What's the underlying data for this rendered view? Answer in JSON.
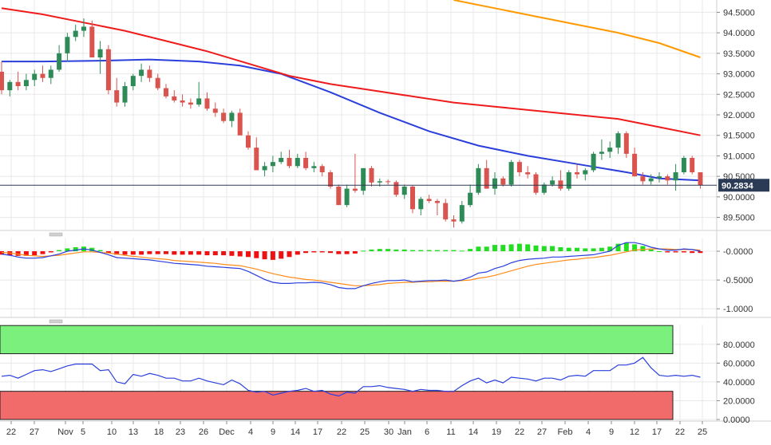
{
  "colors": {
    "up": "#2e8b57",
    "down": "#d9534f",
    "ma_fast": "#2a3fdc",
    "ma_mid": "#ee1c1c",
    "ma_slow": "#ff9900",
    "macd_line": "#2a3fdc",
    "macd_signal": "#ff8c1a",
    "hist_pos": "#22dd22",
    "hist_neg": "#ee1111",
    "rsi_line": "#2a3fdc",
    "overbought_fill": "#7cf07c",
    "oversold_fill": "#f26b6b",
    "last_price_bg": "#2b3a55",
    "grid": "#e8e8e8"
  },
  "chart_data": [
    {
      "type": "candlestick",
      "panel": "price",
      "last_price": "90.2834",
      "ylim": [
        89.2,
        94.8
      ],
      "y_ticks": [
        "89.5000",
        "90.0000",
        "90.5000",
        "91.0000",
        "91.5000",
        "92.0000",
        "92.5000",
        "93.0000",
        "93.5000",
        "94.0000",
        "94.5000"
      ],
      "x_ticks": [
        "22",
        "27",
        "Nov",
        "5",
        "10",
        "13",
        "18",
        "23",
        "26",
        "Dec",
        "4",
        "9",
        "14",
        "17",
        "22",
        "25",
        "30",
        "Jan",
        "6",
        "11",
        "14",
        "19",
        "22",
        "27",
        "Feb",
        "4",
        "9",
        "12",
        "17",
        "22",
        "25"
      ],
      "candles": [
        [
          93.05,
          93.3,
          92.5,
          92.6
        ],
        [
          92.6,
          92.85,
          92.45,
          92.8
        ],
        [
          92.8,
          93.05,
          92.6,
          92.7
        ],
        [
          92.7,
          93.0,
          92.6,
          92.85
        ],
        [
          92.85,
          93.1,
          92.7,
          93.0
        ],
        [
          93.0,
          93.2,
          92.8,
          92.9
        ],
        [
          92.9,
          93.2,
          92.75,
          93.1
        ],
        [
          93.1,
          93.7,
          93.05,
          93.5
        ],
        [
          93.5,
          94.0,
          93.3,
          93.9
        ],
        [
          93.9,
          94.2,
          93.8,
          94.05
        ],
        [
          94.05,
          94.35,
          93.9,
          94.15
        ],
        [
          94.15,
          94.3,
          93.4,
          93.4
        ],
        [
          93.4,
          93.8,
          93.0,
          93.6
        ],
        [
          93.6,
          93.7,
          92.5,
          92.6
        ],
        [
          92.6,
          92.9,
          92.2,
          92.3
        ],
        [
          92.3,
          92.8,
          92.2,
          92.7
        ],
        [
          92.7,
          93.0,
          92.6,
          92.95
        ],
        [
          92.95,
          93.25,
          92.8,
          93.1
        ],
        [
          93.1,
          93.2,
          92.8,
          92.9
        ],
        [
          92.9,
          93.0,
          92.6,
          92.65
        ],
        [
          92.65,
          92.75,
          92.4,
          92.45
        ],
        [
          92.45,
          92.6,
          92.3,
          92.35
        ],
        [
          92.35,
          92.5,
          92.2,
          92.3
        ],
        [
          92.3,
          92.4,
          92.15,
          92.25
        ],
        [
          92.25,
          92.8,
          92.2,
          92.4
        ],
        [
          92.4,
          92.55,
          92.1,
          92.15
        ],
        [
          92.15,
          92.3,
          91.95,
          92.05
        ],
        [
          92.05,
          92.15,
          91.8,
          91.85
        ],
        [
          91.85,
          92.1,
          91.7,
          92.05
        ],
        [
          92.05,
          92.15,
          91.5,
          91.5
        ],
        [
          91.5,
          91.6,
          91.15,
          91.2
        ],
        [
          91.2,
          91.45,
          90.65,
          90.65
        ],
        [
          90.65,
          90.85,
          90.5,
          90.75
        ],
        [
          90.75,
          91.0,
          90.6,
          90.85
        ],
        [
          90.85,
          91.1,
          90.8,
          90.95
        ],
        [
          90.95,
          91.15,
          90.7,
          90.75
        ],
        [
          90.75,
          91.05,
          90.7,
          90.95
        ],
        [
          90.95,
          91.1,
          90.65,
          90.7
        ],
        [
          90.7,
          90.85,
          90.6,
          90.75
        ],
        [
          90.75,
          90.8,
          90.5,
          90.6
        ],
        [
          90.6,
          90.65,
          90.2,
          90.25
        ],
        [
          90.25,
          90.3,
          89.8,
          89.8
        ],
        [
          89.8,
          90.3,
          89.75,
          90.2
        ],
        [
          90.2,
          91.05,
          90.1,
          90.15
        ],
        [
          90.15,
          90.7,
          90.05,
          90.7
        ],
        [
          90.7,
          90.75,
          90.25,
          90.35
        ],
        [
          90.35,
          90.45,
          90.25,
          90.38
        ],
        [
          90.38,
          90.42,
          90.3,
          90.36
        ],
        [
          90.36,
          90.4,
          90.0,
          90.05
        ],
        [
          90.05,
          90.3,
          89.95,
          90.25
        ],
        [
          90.25,
          90.28,
          89.6,
          89.7
        ],
        [
          89.7,
          90.0,
          89.55,
          89.95
        ],
        [
          89.95,
          90.05,
          89.85,
          89.9
        ],
        [
          89.9,
          89.95,
          89.55,
          89.85
        ],
        [
          89.85,
          89.95,
          89.4,
          89.45
        ],
        [
          89.45,
          89.55,
          89.25,
          89.4
        ],
        [
          89.4,
          89.9,
          89.35,
          89.8
        ],
        [
          89.8,
          90.3,
          89.75,
          90.1
        ],
        [
          90.1,
          90.8,
          90.05,
          90.7
        ],
        [
          90.7,
          90.9,
          90.2,
          90.2
        ],
        [
          90.2,
          90.6,
          90.05,
          90.45
        ],
        [
          90.45,
          90.5,
          90.25,
          90.3
        ],
        [
          90.3,
          90.9,
          90.25,
          90.85
        ],
        [
          90.85,
          90.9,
          90.5,
          90.6
        ],
        [
          90.6,
          90.75,
          90.45,
          90.55
        ],
        [
          90.55,
          90.6,
          90.05,
          90.1
        ],
        [
          90.1,
          90.35,
          90.05,
          90.3
        ],
        [
          90.3,
          90.5,
          90.25,
          90.4
        ],
        [
          90.4,
          90.65,
          90.15,
          90.2
        ],
        [
          90.2,
          90.65,
          90.15,
          90.6
        ],
        [
          90.6,
          90.8,
          90.45,
          90.55
        ],
        [
          90.55,
          90.7,
          90.4,
          90.65
        ],
        [
          90.65,
          91.1,
          90.6,
          91.05
        ],
        [
          91.05,
          91.4,
          90.9,
          91.1
        ],
        [
          91.1,
          91.35,
          90.95,
          91.2
        ],
        [
          91.2,
          91.6,
          91.05,
          91.55
        ],
        [
          91.55,
          91.6,
          90.95,
          91.05
        ],
        [
          91.05,
          91.2,
          90.5,
          90.5
        ],
        [
          90.5,
          90.6,
          90.3,
          90.38
        ],
        [
          90.38,
          90.55,
          90.3,
          90.45
        ],
        [
          90.45,
          90.6,
          90.35,
          90.5
        ],
        [
          90.5,
          90.55,
          90.3,
          90.4
        ],
        [
          90.4,
          90.8,
          90.15,
          90.6
        ],
        [
          90.6,
          91.0,
          90.55,
          90.95
        ],
        [
          90.95,
          91.0,
          90.55,
          90.6
        ],
        [
          90.6,
          90.6,
          90.2,
          90.2834
        ]
      ],
      "moving_averages": [
        {
          "period_label": "fast",
          "points": [
            [
              0,
              93.3
            ],
            [
              5,
              93.3
            ],
            [
              12,
              93.32
            ],
            [
              18,
              93.35
            ],
            [
              24,
              93.3
            ],
            [
              29,
              93.2
            ],
            [
              34,
              93.0
            ],
            [
              40,
              92.55
            ],
            [
              46,
              92.05
            ],
            [
              52,
              91.6
            ],
            [
              58,
              91.25
            ],
            [
              64,
              91.0
            ],
            [
              70,
              90.8
            ],
            [
              76,
              90.6
            ],
            [
              80,
              90.45
            ],
            [
              85,
              90.4
            ]
          ]
        },
        {
          "period_label": "mid",
          "points": [
            [
              0,
              94.6
            ],
            [
              5,
              94.45
            ],
            [
              10,
              94.25
            ],
            [
              15,
              94.05
            ],
            [
              20,
              93.8
            ],
            [
              25,
              93.55
            ],
            [
              30,
              93.25
            ],
            [
              35,
              92.95
            ],
            [
              40,
              92.75
            ],
            [
              45,
              92.6
            ],
            [
              50,
              92.45
            ],
            [
              55,
              92.3
            ],
            [
              60,
              92.2
            ],
            [
              65,
              92.1
            ],
            [
              70,
              92.0
            ],
            [
              75,
              91.9
            ],
            [
              80,
              91.7
            ],
            [
              85,
              91.5
            ]
          ]
        },
        {
          "period_label": "slow",
          "points": [
            [
              55,
              94.8
            ],
            [
              60,
              94.6
            ],
            [
              65,
              94.4
            ],
            [
              70,
              94.2
            ],
            [
              75,
              94.0
            ],
            [
              80,
              93.75
            ],
            [
              85,
              93.4
            ]
          ]
        }
      ]
    },
    {
      "type": "line",
      "panel": "macd",
      "ylim": [
        -1.15,
        0.25
      ],
      "y_ticks": [
        "-0.0000",
        "-0.5000",
        "-1.0000"
      ],
      "macd_line": [
        -0.05,
        -0.07,
        -0.1,
        -0.12,
        -0.12,
        -0.11,
        -0.08,
        -0.05,
        -0.0,
        0.02,
        0.04,
        0.02,
        -0.02,
        -0.06,
        -0.11,
        -0.12,
        -0.13,
        -0.14,
        -0.15,
        -0.17,
        -0.19,
        -0.21,
        -0.22,
        -0.23,
        -0.24,
        -0.26,
        -0.27,
        -0.28,
        -0.29,
        -0.3,
        -0.35,
        -0.42,
        -0.49,
        -0.54,
        -0.56,
        -0.56,
        -0.55,
        -0.55,
        -0.54,
        -0.55,
        -0.58,
        -0.63,
        -0.65,
        -0.65,
        -0.6,
        -0.56,
        -0.53,
        -0.51,
        -0.51,
        -0.5,
        -0.53,
        -0.52,
        -0.51,
        -0.51,
        -0.5,
        -0.52,
        -0.5,
        -0.45,
        -0.38,
        -0.36,
        -0.3,
        -0.26,
        -0.2,
        -0.16,
        -0.14,
        -0.13,
        -0.12,
        -0.1,
        -0.1,
        -0.09,
        -0.08,
        -0.07,
        -0.06,
        -0.03,
        0.0,
        0.1,
        0.15,
        0.15,
        0.12,
        0.07,
        0.04,
        0.02,
        0.02,
        0.04,
        0.03,
        0.0
      ],
      "signal_line": [
        -0.02,
        -0.03,
        -0.05,
        -0.07,
        -0.08,
        -0.09,
        -0.08,
        -0.07,
        -0.05,
        -0.03,
        -0.01,
        -0.01,
        -0.02,
        -0.03,
        -0.05,
        -0.07,
        -0.09,
        -0.1,
        -0.12,
        -0.13,
        -0.14,
        -0.16,
        -0.17,
        -0.18,
        -0.19,
        -0.2,
        -0.21,
        -0.23,
        -0.24,
        -0.25,
        -0.28,
        -0.31,
        -0.35,
        -0.39,
        -0.42,
        -0.45,
        -0.47,
        -0.49,
        -0.5,
        -0.52,
        -0.54,
        -0.56,
        -0.58,
        -0.6,
        -0.6,
        -0.59,
        -0.58,
        -0.56,
        -0.55,
        -0.54,
        -0.54,
        -0.53,
        -0.53,
        -0.52,
        -0.52,
        -0.52,
        -0.51,
        -0.5,
        -0.47,
        -0.45,
        -0.42,
        -0.38,
        -0.34,
        -0.3,
        -0.26,
        -0.23,
        -0.21,
        -0.19,
        -0.17,
        -0.15,
        -0.14,
        -0.12,
        -0.11,
        -0.09,
        -0.07,
        -0.04,
        -0.01,
        0.02,
        0.03,
        0.04,
        0.04,
        0.04,
        0.03,
        0.03,
        0.03,
        0.02
      ],
      "histogram": [
        -0.06,
        -0.07,
        -0.08,
        -0.08,
        -0.07,
        -0.05,
        -0.02,
        0.02,
        0.05,
        0.07,
        0.08,
        0.06,
        0.02,
        -0.03,
        -0.06,
        -0.06,
        -0.06,
        -0.06,
        -0.05,
        -0.05,
        -0.05,
        -0.06,
        -0.06,
        -0.06,
        -0.06,
        -0.07,
        -0.07,
        -0.07,
        -0.08,
        -0.09,
        -0.1,
        -0.12,
        -0.14,
        -0.15,
        -0.13,
        -0.1,
        -0.06,
        -0.03,
        -0.02,
        -0.02,
        -0.03,
        -0.05,
        -0.05,
        -0.04,
        0.01,
        0.03,
        0.04,
        0.04,
        0.03,
        0.03,
        0.02,
        0.02,
        0.02,
        0.02,
        0.02,
        0.02,
        0.01,
        0.04,
        0.08,
        0.08,
        0.11,
        0.11,
        0.12,
        0.13,
        0.12,
        0.1,
        0.09,
        0.09,
        0.07,
        0.06,
        0.06,
        0.05,
        0.05,
        0.06,
        0.08,
        0.13,
        0.15,
        0.12,
        0.09,
        0.03,
        0.0,
        -0.02,
        -0.02,
        -0.02,
        -0.03,
        -0.03
      ]
    },
    {
      "type": "line",
      "panel": "rsi",
      "ylim": [
        0,
        100
      ],
      "y_ticks": [
        "0.0000",
        "20.0000",
        "40.0000",
        "60.0000",
        "80.0000"
      ],
      "overbought": 70,
      "oversold": 30,
      "values": [
        46,
        47,
        44,
        48,
        52,
        53,
        51,
        54,
        57,
        59,
        59,
        59,
        52,
        53,
        40,
        38,
        48,
        46,
        49,
        47,
        44,
        44,
        41,
        41,
        44,
        41,
        39,
        37,
        42,
        38,
        31,
        29,
        30,
        26,
        28,
        30,
        31,
        33,
        30,
        31,
        27,
        25,
        29,
        28,
        35,
        35,
        36,
        34,
        33,
        32,
        30,
        32,
        31,
        31,
        30,
        30,
        36,
        41,
        44,
        39,
        42,
        39,
        45,
        44,
        43,
        41,
        44,
        44,
        42,
        46,
        47,
        46,
        52,
        52,
        52,
        58,
        58,
        60,
        66,
        55,
        47,
        46,
        47,
        46,
        47,
        45
      ]
    }
  ]
}
